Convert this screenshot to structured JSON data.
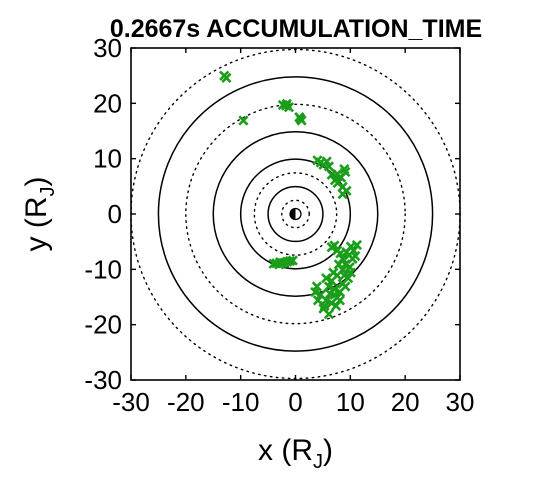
{
  "chart_data": {
    "type": "scatter",
    "title": "0.2667s ACCUMULATION_TIME",
    "xlabel": {
      "main": "x (R",
      "sub": "J",
      "close": ")"
    },
    "ylabel": {
      "main": "y (R",
      "sub": "J",
      "close": ")"
    },
    "xlim": [
      -30,
      30
    ],
    "ylim": [
      -30,
      30
    ],
    "xticks": [
      -30,
      -20,
      -10,
      0,
      10,
      20,
      30
    ],
    "yticks": [
      -30,
      -20,
      -10,
      0,
      10,
      20,
      30
    ],
    "grid": false,
    "legend": "none",
    "marker": "x",
    "marker_color": "#1a9e1a",
    "solid_circle_radii": [
      5,
      10,
      15,
      25
    ],
    "dotted_circle_radii": [
      2.5,
      7.5,
      20,
      30
    ],
    "center_symbol": "half-shaded disk at origin",
    "series": [
      {
        "values": [
          [
            -13,
            25
          ],
          [
            -12.6,
            24.6
          ],
          [
            -2.3,
            19.7
          ],
          [
            -1.7,
            19.6
          ],
          [
            -1.2,
            19.3
          ],
          [
            -1.6,
            19.9
          ],
          [
            -9.5,
            16.9
          ],
          [
            0.7,
            17.5
          ],
          [
            1.1,
            16.9
          ],
          [
            0.9,
            17.2
          ],
          [
            4,
            9.7
          ],
          [
            4.6,
            9.3
          ],
          [
            5.1,
            8.9
          ],
          [
            5.7,
            9.5
          ],
          [
            6.1,
            8.6
          ],
          [
            6.6,
            7.1
          ],
          [
            7.2,
            6.1
          ],
          [
            7.7,
            5.6
          ],
          [
            8.3,
            6.6
          ],
          [
            8.6,
            4.9
          ],
          [
            9.1,
            7.6
          ],
          [
            9.3,
            4.2
          ],
          [
            8.6,
            3.6
          ],
          [
            8.9,
            8.1
          ],
          [
            7.6,
            7.2
          ],
          [
            -4,
            -9
          ],
          [
            -3.5,
            -8.9
          ],
          [
            -3,
            -9.1
          ],
          [
            -2.5,
            -8.9
          ],
          [
            -2,
            -8.8
          ],
          [
            -1.5,
            -8.6
          ],
          [
            -1,
            -8.5
          ],
          [
            -0.5,
            -8.4
          ],
          [
            -2.8,
            -8.7
          ],
          [
            6.6,
            -6
          ],
          [
            7.1,
            -5.7
          ],
          [
            7.6,
            -6.6
          ],
          [
            8.2,
            -7.1
          ],
          [
            8.6,
            -8.1
          ],
          [
            9.3,
            -6.9
          ],
          [
            9.8,
            -7.4
          ],
          [
            10.1,
            -5.9
          ],
          [
            10.6,
            -6.6
          ],
          [
            11.2,
            -5.6
          ],
          [
            9.1,
            -9.1
          ],
          [
            8.6,
            -10.1
          ],
          [
            7.6,
            -11.1
          ],
          [
            6.6,
            -12.1
          ],
          [
            6.1,
            -13.1
          ],
          [
            7.1,
            -13.6
          ],
          [
            8.1,
            -14.1
          ],
          [
            8.6,
            -12.6
          ],
          [
            9.6,
            -11.6
          ],
          [
            10.1,
            -10.6
          ],
          [
            9.1,
            -13.1
          ],
          [
            7.6,
            -15.1
          ],
          [
            6.6,
            -16.1
          ],
          [
            5.6,
            -15.6
          ],
          [
            4.6,
            -14.6
          ],
          [
            3.9,
            -13.1
          ],
          [
            3.6,
            -14.1
          ],
          [
            5.1,
            -17.1
          ],
          [
            6.1,
            -18.1
          ],
          [
            5.3,
            -16.6
          ],
          [
            4.1,
            -15.6
          ],
          [
            7.1,
            -14.6
          ],
          [
            6.9,
            -10.6
          ],
          [
            7.9,
            -9.1
          ],
          [
            8.9,
            -11.1
          ],
          [
            10.4,
            -8.1
          ],
          [
            10.9,
            -7.6
          ],
          [
            5.6,
            -11.6
          ],
          [
            7.4,
            -16.6
          ],
          [
            8.1,
            -15.6
          ],
          [
            6.3,
            -14.4
          ],
          [
            9.9,
            -9.6
          ]
        ]
      }
    ]
  }
}
